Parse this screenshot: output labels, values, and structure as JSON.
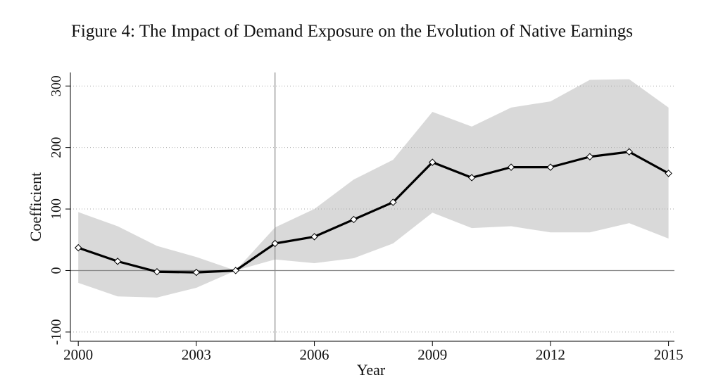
{
  "chart_data": {
    "type": "line",
    "title": "Figure 4: The Impact of Demand Exposure on the Evolution of Native Earnings",
    "xlabel": "Year",
    "ylabel": "Coefficient",
    "x": [
      2000,
      2001,
      2002,
      2003,
      2004,
      2005,
      2006,
      2007,
      2008,
      2009,
      2010,
      2011,
      2012,
      2013,
      2014,
      2015
    ],
    "values": [
      37,
      15,
      -2,
      -3,
      0,
      44,
      55,
      83,
      111,
      176,
      151,
      168,
      168,
      185,
      193,
      158
    ],
    "ci_upper": [
      95,
      72,
      40,
      22,
      0,
      70,
      100,
      148,
      180,
      258,
      234,
      265,
      275,
      310,
      311,
      265
    ],
    "ci_lower": [
      -20,
      -42,
      -44,
      -28,
      0,
      18,
      12,
      20,
      44,
      94,
      69,
      72,
      62,
      62,
      77,
      52
    ],
    "color": "#000000",
    "band_color": "#d9d9d9",
    "xlim": [
      1999.8,
      2015.15
    ],
    "ylim": [
      -115,
      322
    ],
    "xticks": [
      2000,
      2003,
      2006,
      2009,
      2012,
      2015
    ],
    "yticks": [
      -100,
      0,
      100,
      200,
      300
    ],
    "grid": true,
    "reference_lines": {
      "x": 2005,
      "y": 0
    }
  }
}
